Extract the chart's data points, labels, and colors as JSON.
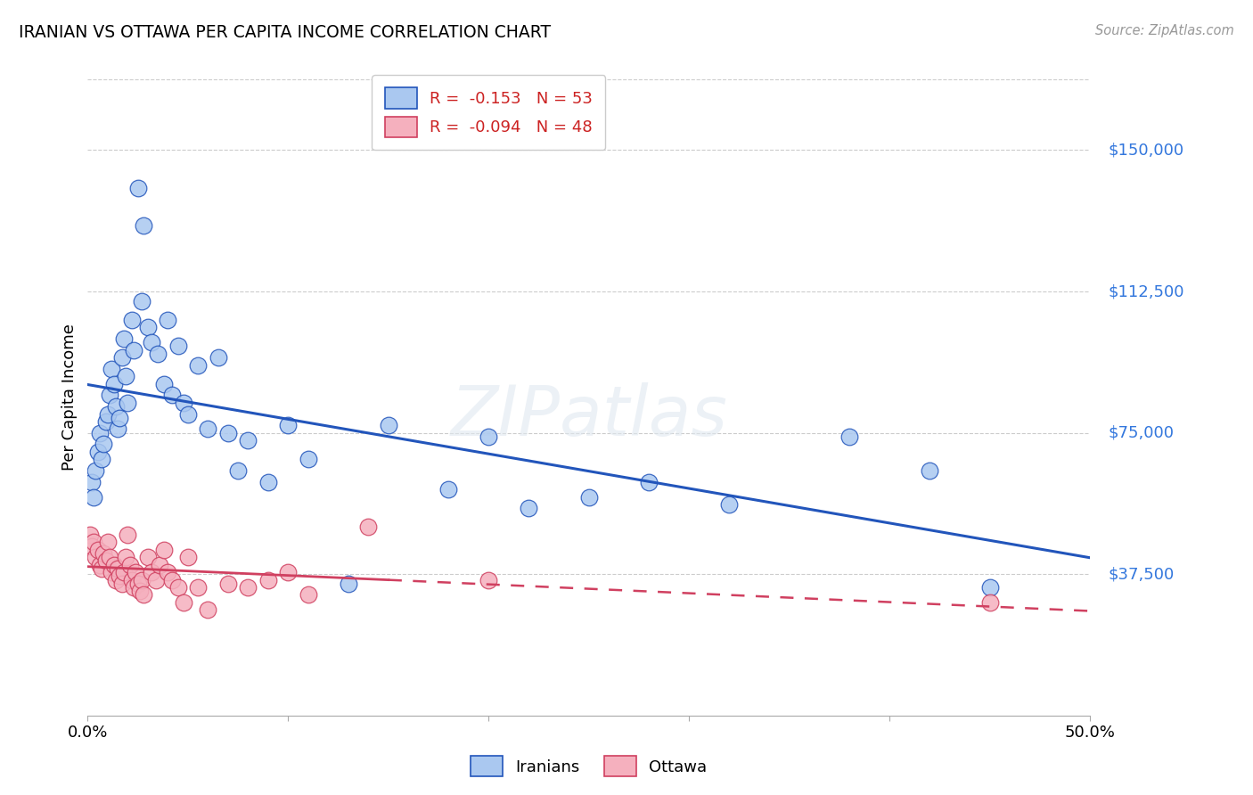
{
  "title": "IRANIAN VS OTTAWA PER CAPITA INCOME CORRELATION CHART",
  "source": "Source: ZipAtlas.com",
  "ylabel": "Per Capita Income",
  "xmin": 0.0,
  "xmax": 0.5,
  "ymin": 0,
  "ymax": 168750,
  "yticks": [
    37500,
    75000,
    112500,
    150000
  ],
  "ytick_labels": [
    "$37,500",
    "$75,000",
    "$112,500",
    "$150,000"
  ],
  "xticks": [
    0.0,
    0.1,
    0.2,
    0.3,
    0.4,
    0.5
  ],
  "xtick_labels": [
    "0.0%",
    "",
    "",
    "",
    "",
    "50.0%"
  ],
  "blue_fill": "#aac8f0",
  "blue_edge": "#2255bb",
  "pink_fill": "#f5b0be",
  "pink_edge": "#d04060",
  "blue_line": "#2255bb",
  "pink_line": "#d04060",
  "watermark": "ZIPatlas",
  "iranians_x": [
    0.002,
    0.003,
    0.004,
    0.005,
    0.006,
    0.007,
    0.008,
    0.009,
    0.01,
    0.011,
    0.012,
    0.013,
    0.014,
    0.015,
    0.016,
    0.017,
    0.018,
    0.019,
    0.02,
    0.022,
    0.023,
    0.025,
    0.027,
    0.028,
    0.03,
    0.032,
    0.035,
    0.038,
    0.04,
    0.042,
    0.045,
    0.048,
    0.05,
    0.055,
    0.06,
    0.065,
    0.07,
    0.075,
    0.08,
    0.09,
    0.1,
    0.11,
    0.13,
    0.15,
    0.18,
    0.2,
    0.22,
    0.25,
    0.28,
    0.32,
    0.38,
    0.42,
    0.45
  ],
  "iranians_y": [
    62000,
    58000,
    65000,
    70000,
    75000,
    68000,
    72000,
    78000,
    80000,
    85000,
    92000,
    88000,
    82000,
    76000,
    79000,
    95000,
    100000,
    90000,
    83000,
    105000,
    97000,
    140000,
    110000,
    130000,
    103000,
    99000,
    96000,
    88000,
    105000,
    85000,
    98000,
    83000,
    80000,
    93000,
    76000,
    95000,
    75000,
    65000,
    73000,
    62000,
    77000,
    68000,
    35000,
    77000,
    60000,
    74000,
    55000,
    58000,
    62000,
    56000,
    74000,
    65000,
    34000
  ],
  "ottawa_x": [
    0.001,
    0.002,
    0.003,
    0.004,
    0.005,
    0.006,
    0.007,
    0.008,
    0.009,
    0.01,
    0.011,
    0.012,
    0.013,
    0.014,
    0.015,
    0.016,
    0.017,
    0.018,
    0.019,
    0.02,
    0.021,
    0.022,
    0.023,
    0.024,
    0.025,
    0.026,
    0.027,
    0.028,
    0.03,
    0.032,
    0.034,
    0.036,
    0.038,
    0.04,
    0.042,
    0.045,
    0.048,
    0.05,
    0.055,
    0.06,
    0.07,
    0.08,
    0.09,
    0.1,
    0.11,
    0.14,
    0.2,
    0.45
  ],
  "ottawa_y": [
    48000,
    45000,
    46000,
    42000,
    44000,
    40000,
    39000,
    43000,
    41000,
    46000,
    42000,
    38000,
    40000,
    36000,
    39000,
    37000,
    35000,
    38000,
    42000,
    48000,
    40000,
    36000,
    34000,
    38000,
    35000,
    33000,
    36000,
    32000,
    42000,
    38000,
    36000,
    40000,
    44000,
    38000,
    36000,
    34000,
    30000,
    42000,
    34000,
    28000,
    35000,
    34000,
    36000,
    38000,
    32000,
    50000,
    36000,
    30000
  ]
}
